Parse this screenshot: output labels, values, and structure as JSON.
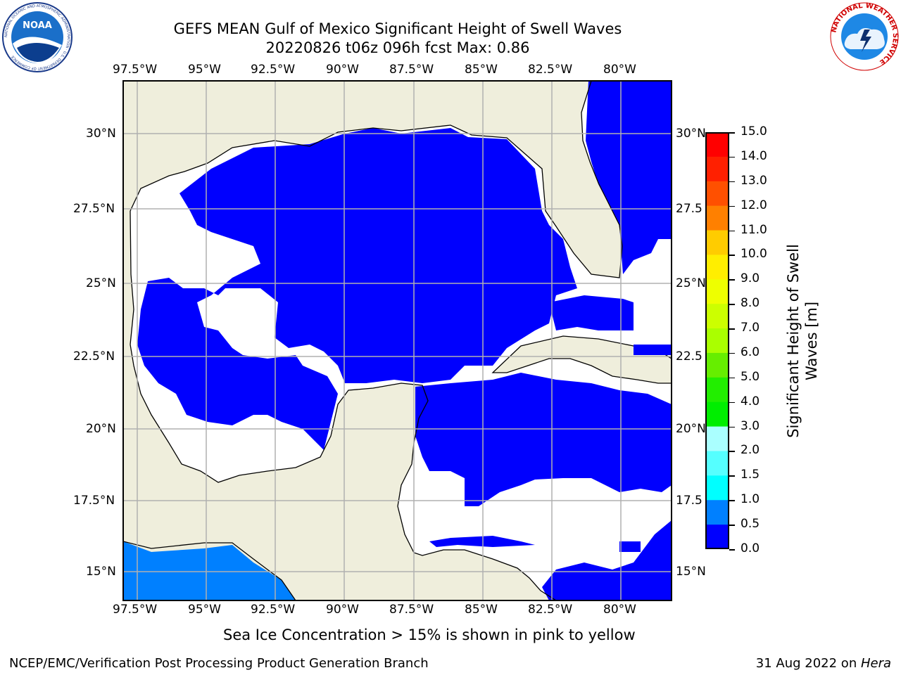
{
  "title": {
    "line1": "GEFS MEAN Gulf of Mexico Significant Height of Swell Waves",
    "line2": "20220826 t06z 096h fcst   Max: 0.86"
  },
  "logos": {
    "noaa_text": "NOAA",
    "noaa_ring": "NATIONAL OCEANIC AND ATMOSPHERIC ADMINISTRATION · U.S. DEPARTMENT OF COMMERCE",
    "nws_ring": "NATIONAL WEATHER SERVICE"
  },
  "map": {
    "lon_labels": [
      "97.5°W",
      "95°W",
      "92.5°W",
      "90°W",
      "87.5°W",
      "85°W",
      "82.5°W",
      "80°W"
    ],
    "lat_labels_left": [
      "30°N",
      "27.5°N",
      "25°N",
      "22.5°N",
      "20°N",
      "17.5°N",
      "15°N"
    ],
    "lat_labels_right": [
      "30°N",
      "27.5",
      "25°N",
      "22.5",
      "20°N",
      "17.5",
      "15°N"
    ],
    "colors": {
      "land": "#efeedc",
      "sea_low": "#0000fe",
      "sea_mid": "#0080ff",
      "nodata": "#ffffff",
      "grid": "#b0b0b0"
    }
  },
  "colorbar": {
    "label": "Significant Height of Swell Waves [m]",
    "label_line1": "Significant Height of Swell",
    "label_line2": "Waves [m]",
    "ticks": [
      "15.0",
      "14.0",
      "13.0",
      "12.0",
      "11.0",
      "10.0",
      "9.0",
      "8.0",
      "7.0",
      "6.0",
      "5.0",
      "4.0",
      "3.0",
      "2.0",
      "1.5",
      "1.0",
      "0.5",
      "0.0"
    ],
    "colors_top_to_bottom": [
      "#ff0000",
      "#ff2000",
      "#ff5000",
      "#ff8000",
      "#ffa500",
      "#ffcc00",
      "#ffee00",
      "#eeff00",
      "#ccff00",
      "#aaff00",
      "#66ee00",
      "#22ee00",
      "#00ee00",
      "#55ff88",
      "#aaffff",
      "#55ffff",
      "#00ffff",
      "#0080ff",
      "#0000fe"
    ]
  },
  "caption": "Sea Ice Concentration > 15% is shown in pink to yellow",
  "footer": {
    "left": "NCEP/EMC/Verification Post Processing Product Generation Branch",
    "right_prefix": "31 Aug 2022 on ",
    "right_italic": "Hera"
  }
}
